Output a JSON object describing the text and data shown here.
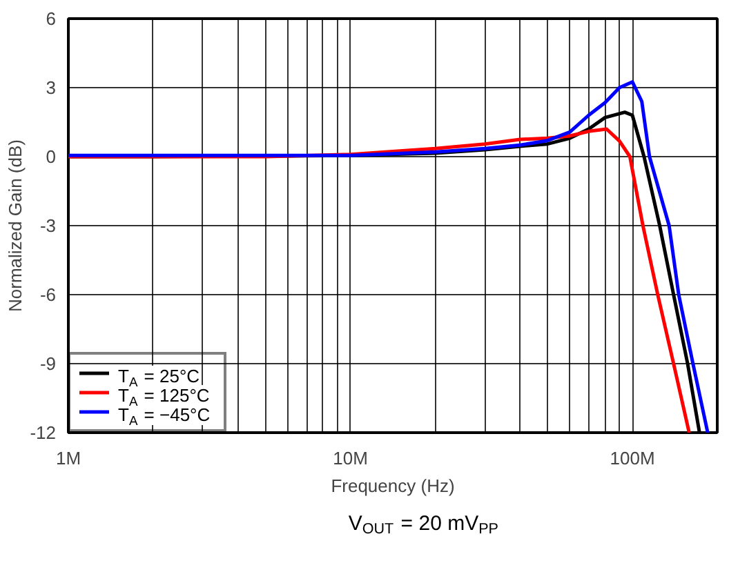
{
  "chart_data": {
    "type": "line",
    "xlabel": "Frequency (Hz)",
    "ylabel": "Normalized Gain (dB)",
    "log": "x",
    "grid": true,
    "legend": "bottom left",
    "line_style": "solid",
    "marker": "none",
    "xlim": [
      1000000,
      200000000
    ],
    "ylim": [
      -12,
      6
    ],
    "xticks": [
      {
        "value": 1000000,
        "label": "1M"
      },
      {
        "value": 2000000,
        "label": null
      },
      {
        "value": 3000000,
        "label": null
      },
      {
        "value": 4000000,
        "label": null
      },
      {
        "value": 5000000,
        "label": null
      },
      {
        "value": 6000000,
        "label": null
      },
      {
        "value": 7000000,
        "label": null
      },
      {
        "value": 8000000,
        "label": null
      },
      {
        "value": 9000000,
        "label": null
      },
      {
        "value": 10000000,
        "label": "10M"
      },
      {
        "value": 20000000,
        "label": null
      },
      {
        "value": 30000000,
        "label": null
      },
      {
        "value": 40000000,
        "label": null
      },
      {
        "value": 50000000,
        "label": null
      },
      {
        "value": 60000000,
        "label": null
      },
      {
        "value": 70000000,
        "label": null
      },
      {
        "value": 80000000,
        "label": null
      },
      {
        "value": 90000000,
        "label": null
      },
      {
        "value": 100000000,
        "label": "100M"
      }
    ],
    "yticks": [
      -12,
      -9,
      -6,
      -3,
      0,
      3,
      6
    ],
    "annotations": [
      "V$_{OUT}$ = 20 mV$_{PP}$"
    ],
    "series": [
      {
        "name": "T$_{A}$ = 25°C",
        "color": "#000000",
        "x": [
          1000000,
          2000000,
          5000000,
          10000000,
          20000000,
          30000000,
          40000000,
          50000000,
          60000000,
          70000000,
          80000000,
          94000000,
          100000000,
          110000000,
          125000000,
          140000000,
          157000000,
          173000000
        ],
        "values": [
          0,
          0,
          0.02,
          0.05,
          0.15,
          0.3,
          0.45,
          0.55,
          0.8,
          1.2,
          1.7,
          1.93,
          1.8,
          0,
          -3,
          -6,
          -9,
          -12
        ]
      },
      {
        "name": "T$_{A}$ = 125°C",
        "color": "#ff0000",
        "x": [
          1000000,
          5000000,
          10000000,
          15000000,
          20000000,
          30000000,
          40000000,
          50000000,
          60000000,
          70000000,
          81000000,
          90000000,
          98000000,
          109000000,
          123000000,
          140000000,
          159000000
        ],
        "values": [
          0,
          0,
          0.1,
          0.25,
          0.35,
          0.55,
          0.75,
          0.8,
          0.9,
          1.1,
          1.2,
          0.68,
          0,
          -3,
          -6,
          -9,
          -12
        ]
      },
      {
        "name": "T$_{A}$ = −45°C",
        "color": "#0000ff",
        "x": [
          1000000,
          10000000,
          20000000,
          30000000,
          40000000,
          50000000,
          60000000,
          70000000,
          80000000,
          90000000,
          100000000,
          108000000,
          115000000,
          135000000,
          146000000,
          164000000,
          185000000
        ],
        "values": [
          0.05,
          0.05,
          0.2,
          0.35,
          0.5,
          0.7,
          1.07,
          1.8,
          2.35,
          3.0,
          3.25,
          2.4,
          0,
          -3,
          -6,
          -9,
          -12
        ]
      }
    ]
  }
}
